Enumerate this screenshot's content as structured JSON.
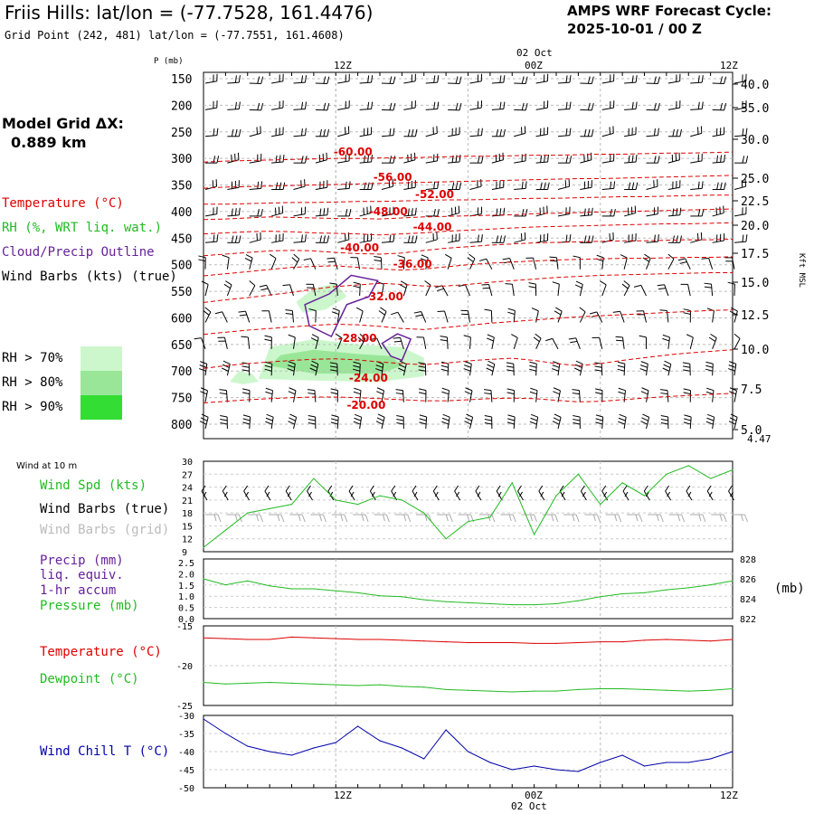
{
  "header": {
    "title": "Friis Hills:  lat/lon = (-77.7528, 161.4476)",
    "subtitle": "Grid Point (242, 481) lat/lon = (-77.7551, 161.4608)",
    "cycle_label": "AMPS WRF Forecast Cycle:",
    "cycle_value": "2025-10-01 / 00  Z"
  },
  "model_grid": {
    "label": "Model Grid ΔX:",
    "value": "0.889 km"
  },
  "legend": {
    "temperature": "Temperature (°C)",
    "rh": "RH (%, WRT liq. wat.)",
    "cloud": "Cloud/Precip Outline",
    "wind": "Wind Barbs (kts) (true)",
    "rh70": "RH > 70%",
    "rh80": "RH > 80%",
    "rh90": "RH > 90%",
    "rh_colors": [
      "#ccf7cc",
      "#99e699",
      "#33dd33"
    ]
  },
  "time_axis": {
    "top_labels": [
      "12Z",
      "00Z",
      "12Z"
    ],
    "top_date": "02 Oct",
    "bottom_labels": [
      "12Z",
      "00Z",
      "12Z"
    ],
    "bottom_date": "02 Oct"
  },
  "colors": {
    "temp": "#dd0000",
    "green": "#22bb22",
    "purple": "#662299",
    "blue": "#0000aa",
    "grey": "#aaaaaa"
  },
  "chart_data": [
    {
      "type": "cross-section",
      "ylabel": "P (mb)",
      "right_label": "Kft MSL",
      "pressure_levels": [
        150,
        200,
        250,
        300,
        350,
        400,
        450,
        500,
        550,
        600,
        650,
        700,
        750,
        800
      ],
      "height_kft": [
        "40.0",
        "35.0",
        "30.0",
        "25.0",
        "22.5",
        "20.0",
        "17.5",
        "15.0",
        "12.5",
        "10.0",
        "7.5",
        "5.0"
      ],
      "surface_kft": "4.47",
      "isotherm_labels": [
        "-60.00",
        "-56.00",
        "-52.00",
        "-48.00",
        "-44.00",
        "-40.00",
        "-36.00",
        "-32.00",
        "-28.00",
        "-24.00",
        "-20.00"
      ],
      "isotherms_hourly": [
        {
          "T": -60,
          "p": [
            307,
            305,
            304,
            303,
            302,
            301,
            300,
            300,
            299,
            299,
            298,
            297,
            296,
            296,
            295,
            294,
            294,
            293,
            292,
            292,
            291,
            290,
            290,
            289,
            288
          ]
        },
        {
          "T": -56,
          "p": [
            356,
            354,
            353,
            352,
            351,
            350,
            349,
            348,
            347,
            346,
            345,
            344,
            343,
            342,
            341,
            340,
            339,
            338,
            338,
            337,
            336,
            335,
            334,
            333,
            332
          ]
        },
        {
          "T": -52,
          "p": [
            386,
            386,
            385,
            384,
            383,
            383,
            382,
            381,
            381,
            380,
            379,
            378,
            378,
            377,
            376,
            375,
            375,
            374,
            373,
            372,
            372,
            371,
            370,
            369,
            369
          ]
        },
        {
          "T": -48,
          "p": [
            415,
            414,
            412,
            410,
            411,
            412,
            413,
            413,
            414,
            412,
            410,
            409,
            408,
            407,
            406,
            404,
            403,
            402,
            401,
            400,
            399,
            398,
            397,
            396,
            395
          ]
        },
        {
          "T": -44,
          "p": [
            442,
            440,
            438,
            437,
            438,
            440,
            441,
            442,
            444,
            442,
            440,
            437,
            435,
            433,
            431,
            429,
            428,
            427,
            426,
            425,
            424,
            423,
            423,
            422,
            421
          ]
        },
        {
          "T": -40,
          "p": [
            483,
            480,
            477,
            474,
            473,
            474,
            477,
            479,
            480,
            478,
            473,
            469,
            466,
            463,
            461,
            459,
            458,
            457,
            456,
            455,
            455,
            454,
            453,
            453,
            452
          ]
        },
        {
          "T": -36,
          "p": [
            521,
            517,
            513,
            509,
            505,
            503,
            502,
            505,
            508,
            510,
            508,
            504,
            500,
            497,
            495,
            493,
            491,
            490,
            489,
            488,
            488,
            487,
            486,
            486,
            485
          ]
        },
        {
          "T": -32,
          "p": [
            571,
            566,
            562,
            557,
            552,
            546,
            541,
            538,
            535,
            537,
            540,
            540,
            537,
            533,
            530,
            527,
            524,
            522,
            520,
            519,
            518,
            517,
            516,
            515,
            515
          ]
        },
        {
          "T": -28,
          "p": [
            631,
            627,
            623,
            620,
            617,
            614,
            612,
            613,
            616,
            620,
            622,
            618,
            614,
            610,
            607,
            604,
            601,
            598,
            596,
            594,
            592,
            590,
            588,
            586,
            585
          ]
        },
        {
          "T": -24,
          "p": [
            695,
            690,
            686,
            683,
            680,
            678,
            677,
            679,
            683,
            686,
            688,
            685,
            681,
            678,
            676,
            680,
            686,
            690,
            686,
            680,
            675,
            670,
            666,
            663,
            660
          ]
        },
        {
          "T": -20,
          "p": [
            760,
            757,
            754,
            752,
            750,
            749,
            749,
            750,
            752,
            754,
            756,
            756,
            754,
            752,
            751,
            752,
            755,
            758,
            757,
            754,
            751,
            748,
            746,
            744,
            742
          ]
        }
      ],
      "rh_regions": [
        {
          "level": ">70%",
          "points": [
            [
              2.5,
              715
            ],
            [
              3,
              655
            ],
            [
              5,
              640
            ],
            [
              7,
              650
            ],
            [
              9,
              655
            ],
            [
              10,
              675
            ],
            [
              10,
              710
            ],
            [
              8,
              720
            ],
            [
              5,
              718
            ]
          ]
        },
        {
          "level": ">70%",
          "points": [
            [
              4.2,
              570
            ],
            [
              5,
              545
            ],
            [
              6,
              535
            ],
            [
              6.5,
              560
            ],
            [
              5.5,
              585
            ],
            [
              4.5,
              590
            ]
          ]
        },
        {
          "level": ">70%",
          "points": [
            [
              1.2,
              720
            ],
            [
              1.6,
              700
            ],
            [
              2.2,
              705
            ],
            [
              2.5,
              720
            ],
            [
              1.8,
              725
            ]
          ]
        },
        {
          "level": ">80%",
          "points": [
            [
              3,
              690
            ],
            [
              3.5,
              670
            ],
            [
              5,
              660
            ],
            [
              7,
              668
            ],
            [
              8.5,
              672
            ],
            [
              9,
              690
            ],
            [
              8,
              705
            ],
            [
              5,
              705
            ]
          ]
        }
      ],
      "cloud_outlines": [
        {
          "points": [
            [
              5.7,
              555
            ],
            [
              6.7,
              520
            ],
            [
              7.9,
              530
            ],
            [
              7.5,
              560
            ],
            [
              6.5,
              575
            ],
            [
              5.8,
              635
            ],
            [
              4.8,
              615
            ],
            [
              4.6,
              575
            ]
          ]
        },
        {
          "points": [
            [
              8.1,
              648
            ],
            [
              8.8,
              630
            ],
            [
              9.4,
              640
            ],
            [
              9.0,
              680
            ],
            [
              8.5,
              672
            ]
          ]
        }
      ]
    },
    {
      "type": "line",
      "title": "Wind at 10 m",
      "series_name": "Wind Spd (kts)",
      "barbs_true": "Wind Barbs (true)",
      "barbs_grid": "Wind Barbs (grid)",
      "y_ticks": [
        "30",
        "27",
        "24",
        "21",
        "18",
        "15",
        "12",
        "9"
      ],
      "ylim": [
        9,
        30
      ],
      "x_hours": [
        0,
        1,
        2,
        3,
        4,
        5,
        6,
        7,
        8,
        9,
        10,
        11,
        12,
        13,
        14,
        15,
        16,
        17,
        18,
        19,
        20,
        21,
        22,
        23,
        24
      ],
      "values": [
        10,
        14,
        18,
        19,
        20,
        26,
        21,
        20,
        22,
        21,
        18,
        12,
        16,
        17,
        25,
        13,
        22,
        27,
        20,
        25,
        22,
        27,
        29,
        26,
        28
      ]
    },
    {
      "type": "line",
      "precip_label": "Precip (mm)",
      "precip_note1": "liq. equiv.",
      "precip_note2": "1-hr accum",
      "pressure_label": "Pressure (mb)",
      "right_axis_label": "(mb)",
      "left_ticks": [
        "2.5",
        "2.0",
        "1.5",
        "1.0",
        "0.5",
        "0.0"
      ],
      "right_ticks": [
        "828",
        "826",
        "824",
        "822"
      ],
      "pressure_ylim": [
        822,
        828
      ],
      "pressure": [
        826.0,
        825.4,
        825.8,
        825.3,
        825.0,
        825.0,
        824.8,
        824.6,
        824.3,
        824.2,
        823.9,
        823.7,
        823.6,
        823.5,
        823.4,
        823.4,
        823.5,
        823.8,
        824.2,
        824.5,
        824.6,
        824.9,
        825.1,
        825.4,
        825.8
      ]
    },
    {
      "type": "line",
      "temp_label": "Temperature (°C)",
      "dew_label": "Dewpoint (°C)",
      "y_ticks": [
        "-15",
        "-20",
        "-25"
      ],
      "ylim": [
        -25,
        -15
      ],
      "temperature": [
        -16.5,
        -16.6,
        -16.7,
        -16.7,
        -16.4,
        -16.5,
        -16.6,
        -16.7,
        -16.7,
        -16.8,
        -16.9,
        -17.0,
        -17.1,
        -17.1,
        -17.1,
        -17.2,
        -17.2,
        -17.1,
        -17.0,
        -17.0,
        -16.8,
        -16.7,
        -16.8,
        -16.9,
        -16.7
      ],
      "dewpoint": [
        -22.1,
        -22.3,
        -22.2,
        -22.1,
        -22.2,
        -22.3,
        -22.4,
        -22.5,
        -22.4,
        -22.6,
        -22.7,
        -23.0,
        -23.1,
        -23.2,
        -23.3,
        -23.2,
        -23.2,
        -23.0,
        -22.9,
        -22.9,
        -23.0,
        -23.1,
        -23.2,
        -23.1,
        -22.9
      ]
    },
    {
      "type": "line",
      "series_name": "Wind Chill T (°C)",
      "y_ticks": [
        "-30",
        "-35",
        "-40",
        "-45",
        "-50"
      ],
      "ylim": [
        -50,
        -30
      ],
      "values": [
        -31,
        -35,
        -38.5,
        -40,
        -41,
        -39,
        -37.5,
        -33,
        -37,
        -39,
        -42,
        -34,
        -40,
        -43,
        -45,
        -44,
        -45,
        -45.5,
        -43,
        -41,
        -44,
        -43,
        -43,
        -42,
        -40
      ]
    }
  ]
}
